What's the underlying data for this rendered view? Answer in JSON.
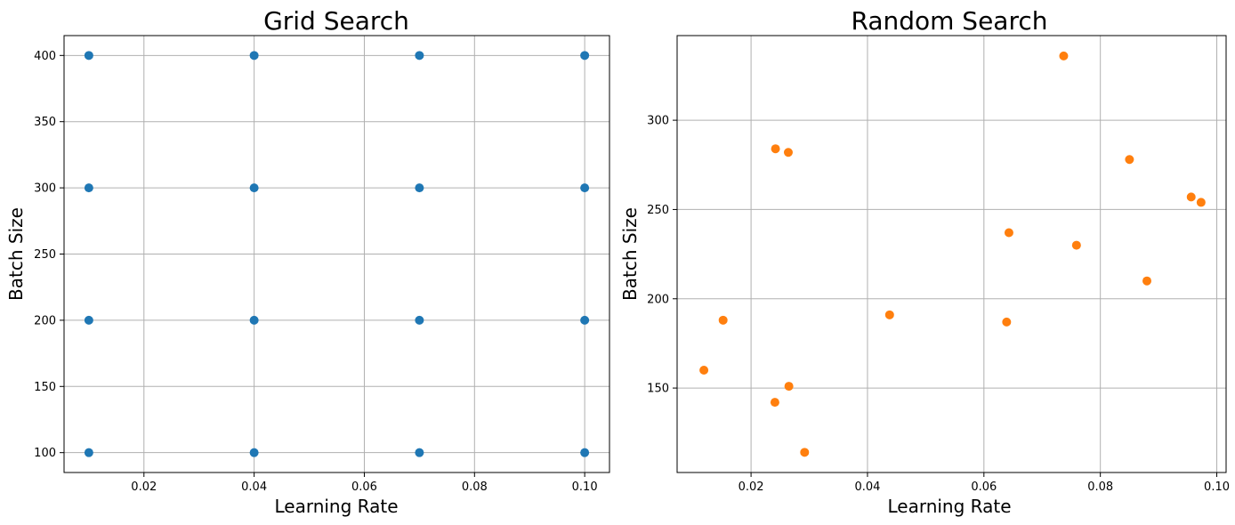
{
  "chart_data": [
    {
      "type": "scatter",
      "title": "Grid Search",
      "xlabel": "Learning Rate",
      "ylabel": "Batch Size",
      "xlim": [
        0.0055,
        0.1045
      ],
      "ylim": [
        85,
        415
      ],
      "xticks": [
        0.02,
        0.04,
        0.06,
        0.08,
        0.1
      ],
      "xtick_labels": [
        "0.02",
        "0.04",
        "0.06",
        "0.08",
        "0.10"
      ],
      "yticks": [
        100,
        150,
        200,
        250,
        300,
        350,
        400
      ],
      "ytick_labels": [
        "100",
        "150",
        "200",
        "250",
        "300",
        "350",
        "400"
      ],
      "grid": true,
      "color": "#1f77b4",
      "points": [
        {
          "x": 0.01,
          "y": 100
        },
        {
          "x": 0.01,
          "y": 200
        },
        {
          "x": 0.01,
          "y": 300
        },
        {
          "x": 0.01,
          "y": 400
        },
        {
          "x": 0.04,
          "y": 100
        },
        {
          "x": 0.04,
          "y": 200
        },
        {
          "x": 0.04,
          "y": 300
        },
        {
          "x": 0.04,
          "y": 400
        },
        {
          "x": 0.07,
          "y": 100
        },
        {
          "x": 0.07,
          "y": 200
        },
        {
          "x": 0.07,
          "y": 300
        },
        {
          "x": 0.07,
          "y": 400
        },
        {
          "x": 0.1,
          "y": 100
        },
        {
          "x": 0.1,
          "y": 200
        },
        {
          "x": 0.1,
          "y": 300
        },
        {
          "x": 0.1,
          "y": 400
        }
      ]
    },
    {
      "type": "scatter",
      "title": "Random Search",
      "xlabel": "Learning Rate",
      "ylabel": "Batch Size",
      "xlim": [
        0.0073,
        0.1016
      ],
      "ylim": [
        102.7,
        347.4
      ],
      "xticks": [
        0.02,
        0.04,
        0.06,
        0.08,
        0.1
      ],
      "xtick_labels": [
        "0.02",
        "0.04",
        "0.06",
        "0.08",
        "0.10"
      ],
      "yticks": [
        150,
        200,
        250,
        300
      ],
      "ytick_labels": [
        "150",
        "200",
        "250",
        "300"
      ],
      "grid": true,
      "color": "#ff7f0e",
      "points": [
        {
          "x": 0.0737,
          "y": 336
        },
        {
          "x": 0.0242,
          "y": 284
        },
        {
          "x": 0.0264,
          "y": 282
        },
        {
          "x": 0.085,
          "y": 278
        },
        {
          "x": 0.0956,
          "y": 257
        },
        {
          "x": 0.0973,
          "y": 254
        },
        {
          "x": 0.0643,
          "y": 237
        },
        {
          "x": 0.0759,
          "y": 230
        },
        {
          "x": 0.088,
          "y": 210
        },
        {
          "x": 0.0438,
          "y": 191
        },
        {
          "x": 0.0152,
          "y": 188
        },
        {
          "x": 0.0639,
          "y": 187
        },
        {
          "x": 0.0119,
          "y": 160
        },
        {
          "x": 0.0265,
          "y": 151
        },
        {
          "x": 0.0241,
          "y": 142
        },
        {
          "x": 0.0292,
          "y": 114
        }
      ]
    }
  ]
}
